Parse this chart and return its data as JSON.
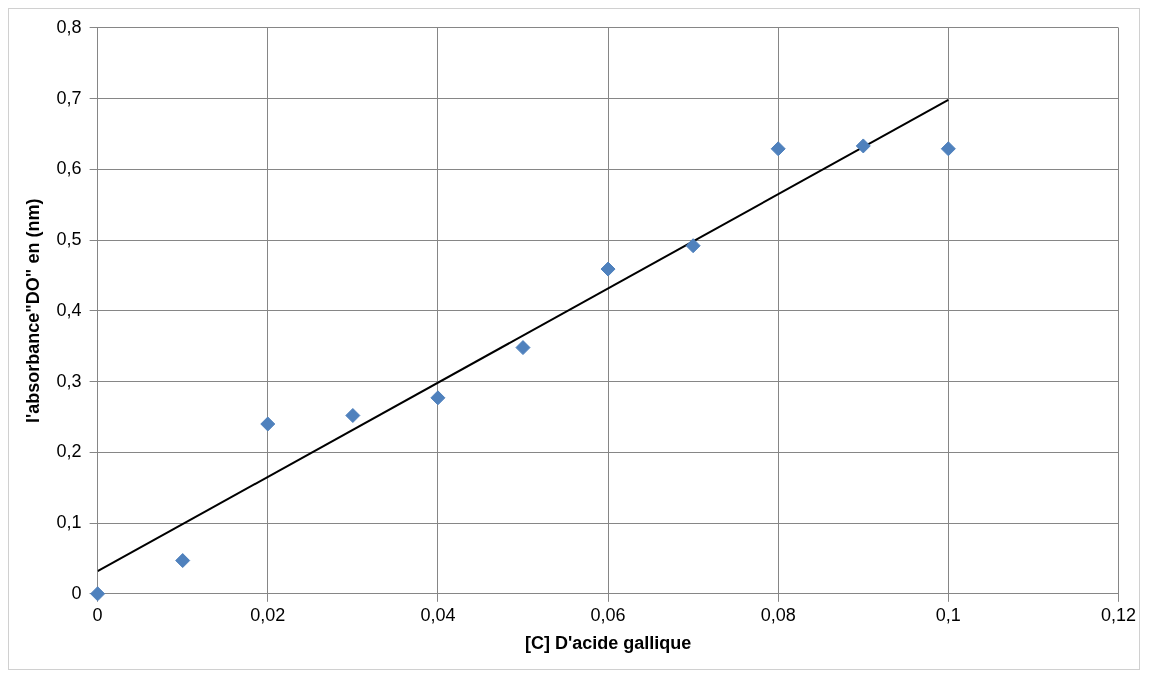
{
  "chart_data": {
    "type": "scatter",
    "xlabel": "[C] D'acide gallique",
    "ylabel": "l'absorbance\"DO\" en (nm)",
    "x": [
      0,
      0.01,
      0.02,
      0.03,
      0.04,
      0.05,
      0.06,
      0.07,
      0.08,
      0.09,
      0.1
    ],
    "series": [
      {
        "color": "#4f81bd",
        "values": [
          0,
          0.047,
          0.24,
          0.252,
          0.277,
          0.348,
          0.459,
          0.492,
          0.629,
          0.633,
          0.629
        ]
      },
      {
        "type": "line",
        "marker": "none",
        "color": "#000000",
        "x": [
          0,
          0.1
        ],
        "values": [
          0.032,
          0.698
        ]
      }
    ],
    "marker": "diamond",
    "grid": true,
    "legend": false,
    "xlim": [
      0,
      0.12
    ],
    "xticks": [
      {
        "value": 0,
        "label": "0"
      },
      {
        "value": 0.02,
        "label": "0,02"
      },
      {
        "value": 0.04,
        "label": "0,04"
      },
      {
        "value": 0.06,
        "label": "0,06"
      },
      {
        "value": 0.08,
        "label": "0,08"
      },
      {
        "value": 0.1,
        "label": "0,1"
      },
      {
        "value": 0.12,
        "label": "0,12"
      }
    ],
    "ylim": [
      0,
      0.8
    ],
    "yticks": [
      {
        "value": 0,
        "label": "0"
      },
      {
        "value": 0.1,
        "label": "0,1"
      },
      {
        "value": 0.2,
        "label": "0,2"
      },
      {
        "value": 0.3,
        "label": "0,3"
      },
      {
        "value": 0.4,
        "label": "0,4"
      },
      {
        "value": 0.5,
        "label": "0,5"
      },
      {
        "value": 0.6,
        "label": "0,6"
      },
      {
        "value": 0.7,
        "label": "0,7"
      },
      {
        "value": 0.8,
        "label": "0,8"
      }
    ]
  }
}
